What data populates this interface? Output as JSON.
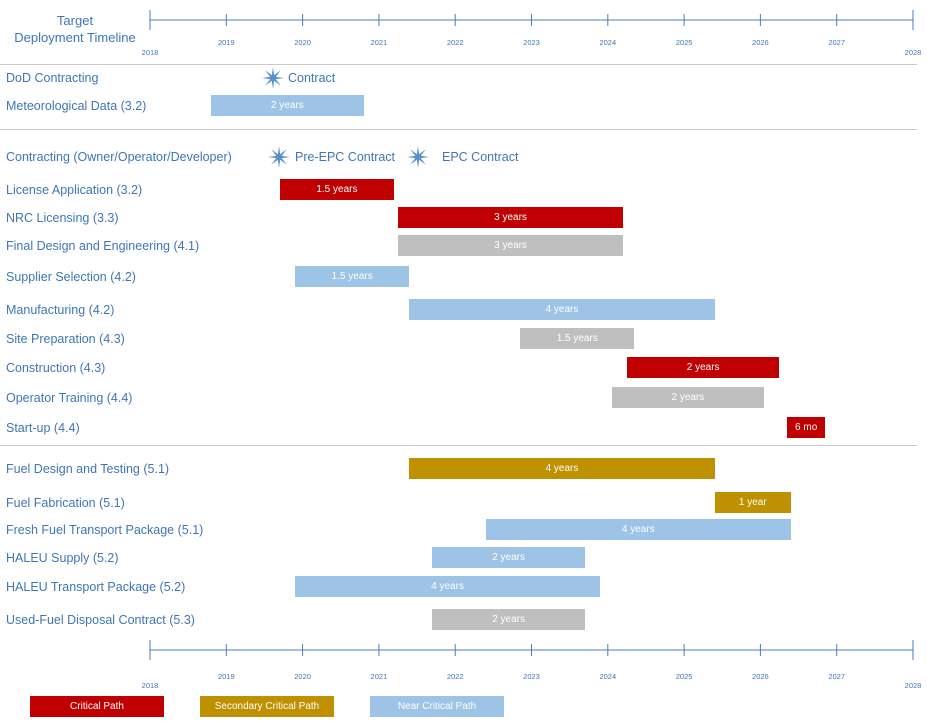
{
  "colors": {
    "critical": "#c00000",
    "secondary": "#bf9000",
    "near": "#9dc3e6",
    "other": "#bfbfbf",
    "text": "#3f76b6",
    "axis": "#4a7ebb",
    "star": "#5a8fcf"
  },
  "timeline": {
    "title_line1": "Target",
    "title_line2": "Deployment Timeline",
    "ticks": [
      "2018",
      "2019",
      "2020",
      "2021",
      "2022",
      "2023",
      "2024",
      "2025",
      "2026",
      "2027",
      "2028"
    ]
  },
  "chart_data": {
    "type": "gantt",
    "xlim": [
      2018,
      2028
    ],
    "milestones": [
      {
        "label": "Contract",
        "x": 2019.6,
        "row": "DoD Contracting"
      },
      {
        "label": "Pre-EPC Contract",
        "x": 2019.75,
        "row": "Contracting (Owner/Operator/Developer)"
      },
      {
        "label": "EPC Contract",
        "x": 2021.5,
        "row": "Contracting (Owner/Operator/Developer)"
      }
    ],
    "rows": [
      {
        "task": "DoD Contracting",
        "bars": []
      },
      {
        "task": "Meteorological Data (3.2)",
        "bars": [
          {
            "start": 2018.8,
            "end": 2020.8,
            "label": "2 years",
            "kind": "near"
          }
        ]
      },
      {
        "task": "Contracting (Owner/Operator/Developer)",
        "bars": []
      },
      {
        "task": "License Application (3.2)",
        "bars": [
          {
            "start": 2019.7,
            "end": 2021.2,
            "label": "1.5 years",
            "kind": "critical"
          }
        ]
      },
      {
        "task": "NRC Licensing (3.3)",
        "bars": [
          {
            "start": 2021.25,
            "end": 2024.2,
            "label": "3 years",
            "kind": "critical"
          }
        ]
      },
      {
        "task": "Final Design and Engineering (4.1)",
        "bars": [
          {
            "start": 2021.25,
            "end": 2024.2,
            "label": "3 years",
            "kind": "other"
          }
        ]
      },
      {
        "task": "Supplier Selection (4.2)",
        "bars": [
          {
            "start": 2019.9,
            "end": 2021.4,
            "label": "1.5 years",
            "kind": "near"
          }
        ]
      },
      {
        "task": "Manufacturing (4.2)",
        "bars": [
          {
            "start": 2021.4,
            "end": 2025.4,
            "label": "4 years",
            "kind": "near"
          }
        ]
      },
      {
        "task": "Site Preparation (4.3)",
        "bars": [
          {
            "start": 2022.85,
            "end": 2024.35,
            "label": "1.5 years",
            "kind": "other"
          }
        ]
      },
      {
        "task": "Construction (4.3)",
        "bars": [
          {
            "start": 2024.25,
            "end": 2026.25,
            "label": "2 years",
            "kind": "critical"
          }
        ]
      },
      {
        "task": "Operator Training (4.4)",
        "bars": [
          {
            "start": 2024.05,
            "end": 2026.05,
            "label": "2 years",
            "kind": "other"
          }
        ]
      },
      {
        "task": "Start-up (4.4)",
        "bars": [
          {
            "start": 2026.35,
            "end": 2026.85,
            "label": "6 mo",
            "kind": "critical"
          }
        ]
      },
      {
        "task": "Fuel Design and Testing (5.1)",
        "bars": [
          {
            "start": 2021.4,
            "end": 2025.4,
            "label": "4 years",
            "kind": "secondary"
          }
        ]
      },
      {
        "task": "Fuel Fabrication (5.1)",
        "bars": [
          {
            "start": 2025.4,
            "end": 2026.4,
            "label": "1 year",
            "kind": "secondary"
          }
        ]
      },
      {
        "task": "Fresh Fuel Transport Package (5.1)",
        "bars": [
          {
            "start": 2022.4,
            "end": 2026.4,
            "label": "4 years",
            "kind": "near"
          }
        ]
      },
      {
        "task": "HALEU Supply (5.2)",
        "bars": [
          {
            "start": 2021.7,
            "end": 2023.7,
            "label": "2 years",
            "kind": "near"
          }
        ]
      },
      {
        "task": "HALEU Transport Package (5.2)",
        "bars": [
          {
            "start": 2019.9,
            "end": 2023.9,
            "label": "4 years",
            "kind": "near"
          }
        ]
      },
      {
        "task": "Used-Fuel Disposal Contract (5.3)",
        "bars": [
          {
            "start": 2021.7,
            "end": 2023.7,
            "label": "2 years",
            "kind": "other"
          }
        ]
      }
    ]
  },
  "legend": [
    {
      "label": "Critical Path",
      "kind": "critical"
    },
    {
      "label": "Secondary Critical Path",
      "kind": "secondary"
    },
    {
      "label": "Near Critical Path",
      "kind": "near"
    }
  ]
}
